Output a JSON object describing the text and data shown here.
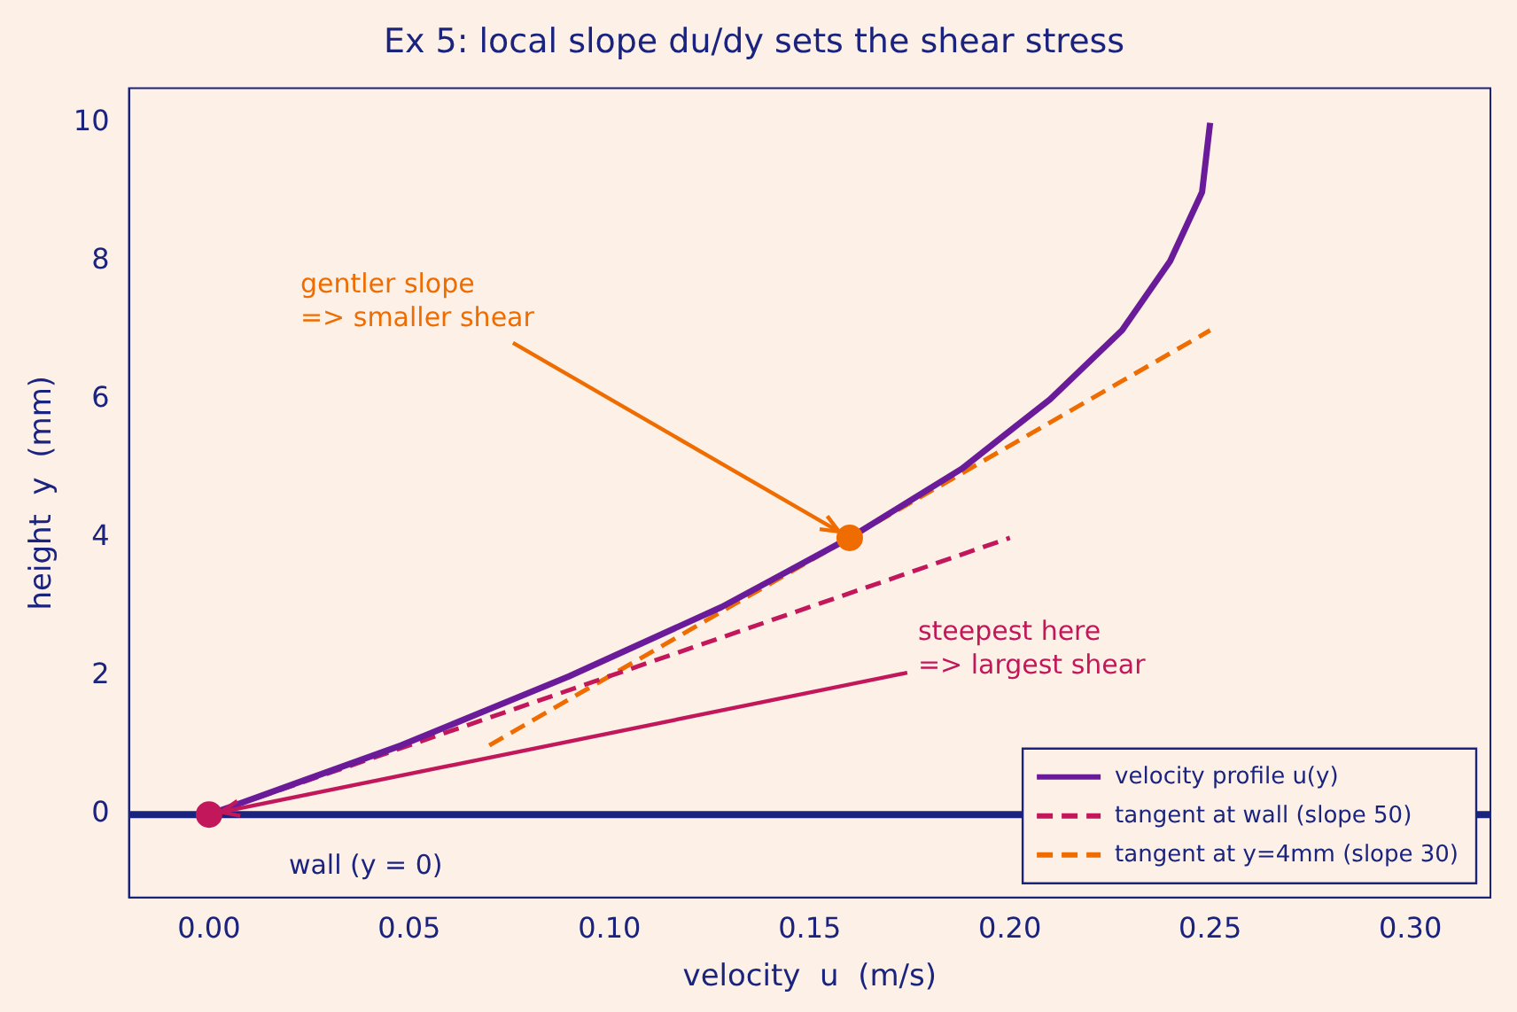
{
  "chart_data": {
    "type": "line",
    "title": "Ex 5: local slope du/dy sets the shear stress",
    "xlabel": "velocity  u  (m/s)",
    "ylabel": "height  y  (mm)",
    "xlim": [
      -0.02,
      0.32
    ],
    "xticks": [
      {
        "value": 0,
        "label": "0.00"
      },
      {
        "value": 0.05,
        "label": "0.05"
      },
      {
        "value": 0.1,
        "label": "0.10"
      },
      {
        "value": 0.15,
        "label": "0.15"
      },
      {
        "value": 0.2,
        "label": "0.20"
      },
      {
        "value": 0.25,
        "label": "0.25"
      },
      {
        "value": 0.3,
        "label": "0.30"
      }
    ],
    "ylim": [
      -1.2,
      10.5
    ],
    "yticks": [
      0,
      2,
      4,
      6,
      8,
      10
    ],
    "grid": false,
    "legend": "bottom right",
    "series": [
      {
        "name": "velocity profile u(y)",
        "color": "#6a1b9a",
        "line_style": "solid",
        "x": [
          0,
          0.024,
          0.048,
          0.069,
          0.09,
          0.109,
          0.128,
          0.144,
          0.16,
          0.174,
          0.188,
          0.199,
          0.21,
          0.219,
          0.228,
          0.234,
          0.24,
          0.244,
          0.248,
          0.249,
          0.25
        ],
        "values": [
          0,
          0.5,
          1,
          1.5,
          2,
          2.5,
          3,
          3.5,
          4,
          4.5,
          5,
          5.5,
          6,
          6.5,
          7,
          7.5,
          8,
          8.5,
          9,
          9.5,
          10
        ]
      },
      {
        "name": "tangent at wall (slope 50)",
        "color": "#c2185b",
        "line_style": "dashed",
        "x": [
          0,
          0.2
        ],
        "values": [
          0,
          4
        ]
      },
      {
        "name": "tangent at y=4mm (slope 30)",
        "color": "#ef6c00",
        "line_style": "dashed",
        "x": [
          0.07,
          0.25
        ],
        "values": [
          1,
          7
        ]
      },
      {
        "type": "scatter",
        "color": "#c2185b",
        "marker": "circle",
        "x": [
          0
        ],
        "values": [
          0
        ]
      },
      {
        "type": "scatter",
        "color": "#ef6c00",
        "marker": "circle",
        "x": [
          0.16
        ],
        "values": [
          4
        ]
      }
    ],
    "ref_lines": [
      {
        "axis": "y",
        "value": 0,
        "label": "wall (y = 0)",
        "color": "#1a237e"
      }
    ],
    "annotations": [
      {
        "text": "gentler slope\n=> smaller shear",
        "x": 0.16,
        "y": 4
      },
      {
        "text": "steepest here\n=> largest shear",
        "x": 0,
        "y": 0
      }
    ]
  }
}
